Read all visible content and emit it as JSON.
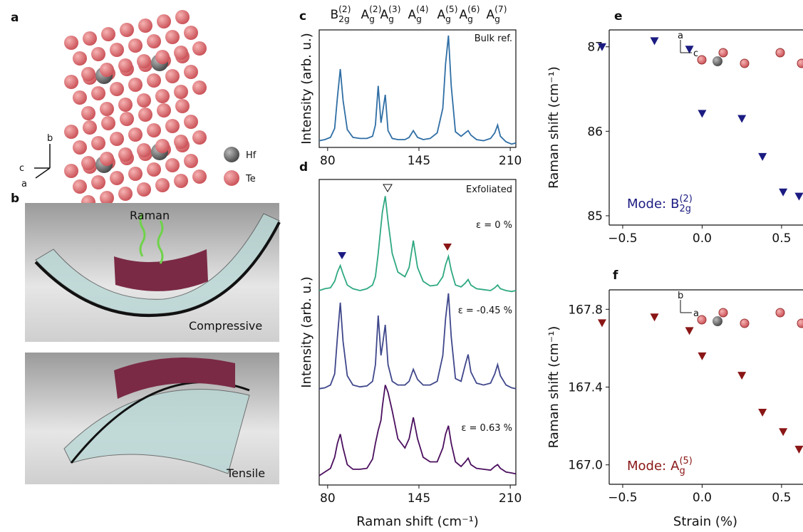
{
  "panel_a": {
    "label": "a",
    "crystal_axes": [
      "b",
      "c",
      "a"
    ],
    "legend": [
      "Hf",
      "Te"
    ]
  },
  "panel_b": {
    "label": "b",
    "labels": [
      "Raman",
      "Compressive",
      "Tensile"
    ]
  },
  "chart_data": [
    {
      "type": "line",
      "label": "c",
      "ylabel": "Intensity (arb. u.)",
      "peak_labels": [
        {
          "base": "B",
          "sub": "2g",
          "sup": "(2)"
        },
        {
          "base": "A",
          "sub": "g",
          "sup": "(2)"
        },
        {
          "base": "A",
          "sub": "g",
          "sup": "(3)"
        },
        {
          "base": "A",
          "sub": "g",
          "sup": "(4)"
        },
        {
          "base": "A",
          "sub": "g",
          "sup": "(5)"
        },
        {
          "base": "A",
          "sub": "g",
          "sup": "(6)"
        },
        {
          "base": "A",
          "sub": "g",
          "sup": "(7)"
        }
      ],
      "x": [
        74,
        78,
        82,
        85,
        87,
        89,
        91,
        94,
        98,
        103,
        108,
        112,
        114,
        116,
        118,
        119,
        121,
        123,
        126,
        130,
        135,
        138,
        141,
        144,
        148,
        153,
        158,
        162,
        164,
        166,
        168,
        171,
        175,
        178,
        180,
        182,
        186,
        191,
        196,
        199,
        201,
        203,
        207,
        211,
        214
      ],
      "series": [
        {
          "name": "Bulk ref.",
          "color": "#2f6ea5",
          "values": [
            0.06,
            0.07,
            0.09,
            0.17,
            0.45,
            0.7,
            0.42,
            0.16,
            0.09,
            0.08,
            0.08,
            0.1,
            0.2,
            0.55,
            0.22,
            0.3,
            0.47,
            0.15,
            0.08,
            0.07,
            0.07,
            0.09,
            0.15,
            0.09,
            0.07,
            0.08,
            0.13,
            0.35,
            0.75,
            1.0,
            0.55,
            0.14,
            0.1,
            0.13,
            0.15,
            0.11,
            0.07,
            0.06,
            0.08,
            0.13,
            0.2,
            0.1,
            0.05,
            0.03,
            0.04
          ]
        }
      ],
      "xlim": [
        74,
        214
      ],
      "ylim": [
        0,
        1.05
      ],
      "xticks": [
        80,
        145,
        210
      ]
    },
    {
      "type": "line",
      "label": "d",
      "ylabel": "Intensity (arb. u.)",
      "xlabel": "Raman shift (cm⁻¹)",
      "annotation": "Exfoliated",
      "x": [
        74,
        78,
        82,
        85,
        87,
        89,
        91,
        94,
        98,
        103,
        108,
        112,
        114,
        116,
        118,
        119,
        121,
        123,
        126,
        130,
        135,
        138,
        141,
        144,
        148,
        153,
        158,
        162,
        164,
        166,
        168,
        171,
        175,
        178,
        180,
        182,
        186,
        191,
        196,
        199,
        201,
        203,
        207,
        211,
        214
      ],
      "series": [
        {
          "name": "ε = 0 %",
          "color": "#2fa882",
          "values": [
            2.1,
            2.12,
            2.13,
            2.2,
            2.3,
            2.37,
            2.28,
            2.16,
            2.12,
            2.1,
            2.12,
            2.16,
            2.25,
            2.5,
            2.8,
            2.95,
            3.12,
            2.85,
            2.5,
            2.3,
            2.25,
            2.35,
            2.64,
            2.35,
            2.2,
            2.15,
            2.16,
            2.25,
            2.38,
            2.47,
            2.32,
            2.16,
            2.14,
            2.18,
            2.22,
            2.16,
            2.12,
            2.11,
            2.1,
            2.13,
            2.16,
            2.12,
            2.1,
            2.09,
            2.1
          ]
        },
        {
          "name": "ε = -0.45 %",
          "color": "#3f478b",
          "values": [
            1.04,
            1.05,
            1.08,
            1.2,
            1.6,
            1.97,
            1.55,
            1.18,
            1.08,
            1.06,
            1.07,
            1.12,
            1.3,
            1.83,
            1.4,
            1.5,
            1.73,
            1.3,
            1.12,
            1.08,
            1.08,
            1.12,
            1.25,
            1.14,
            1.08,
            1.08,
            1.12,
            1.4,
            1.8,
            2.07,
            1.6,
            1.15,
            1.12,
            1.3,
            1.41,
            1.22,
            1.1,
            1.08,
            1.1,
            1.2,
            1.3,
            1.18,
            1.08,
            1.05,
            1.04
          ]
        },
        {
          "name": "ε = 0.63 %",
          "color": "#4b0f5e",
          "values": [
            0.1,
            0.14,
            0.18,
            0.3,
            0.45,
            0.55,
            0.4,
            0.22,
            0.17,
            0.17,
            0.18,
            0.28,
            0.45,
            0.59,
            0.7,
            0.85,
            1.08,
            1.0,
            0.8,
            0.5,
            0.4,
            0.5,
            0.73,
            0.5,
            0.3,
            0.25,
            0.25,
            0.4,
            0.55,
            0.64,
            0.45,
            0.25,
            0.2,
            0.25,
            0.29,
            0.22,
            0.18,
            0.17,
            0.16,
            0.2,
            0.22,
            0.18,
            0.14,
            0.13,
            0.12
          ]
        }
      ],
      "xlim": [
        74,
        214
      ],
      "ylim": [
        0,
        3.3
      ],
      "xticks": [
        80,
        145,
        210
      ]
    },
    {
      "type": "scatter",
      "label": "e",
      "ylabel": "Raman shift (cm⁻¹)",
      "annotation": {
        "prefix": "Mode:",
        "base": "B",
        "sub": "2g",
        "sup": "(2)"
      },
      "inset_axes": [
        "a",
        "c"
      ],
      "x": [
        -0.63,
        -0.3,
        -0.08,
        0,
        0.25,
        0.38,
        0.51,
        0.61
      ],
      "values": [
        87.0,
        87.07,
        86.97,
        86.21,
        86.15,
        85.7,
        85.28,
        85.23
      ],
      "color": "#1b1b82",
      "xlim": [
        -0.585,
        0.635
      ],
      "ylim": [
        84.89,
        87.2
      ],
      "xticks": [
        {
          "value": -0.5,
          "label": "−0.5"
        },
        {
          "value": 0,
          "label": "0.0"
        },
        0.5
      ],
      "yticks": [
        85,
        86,
        87
      ]
    },
    {
      "type": "scatter",
      "label": "f",
      "ylabel": "Raman shift (cm⁻¹)",
      "xlabel": "Strain (%)",
      "annotation": {
        "prefix": "Mode:",
        "base": "A",
        "sub": "g",
        "sup": "(5)"
      },
      "inset_axes": [
        "b",
        "a"
      ],
      "x": [
        -0.63,
        -0.3,
        -0.08,
        0,
        0.25,
        0.38,
        0.51,
        0.61
      ],
      "values": [
        167.73,
        167.76,
        167.69,
        167.56,
        167.46,
        167.27,
        167.17,
        167.08
      ],
      "color": "#8a1616",
      "xlim": [
        -0.585,
        0.635
      ],
      "ylim": [
        166.9,
        167.9
      ],
      "xticks": [
        {
          "value": -0.5,
          "label": "−0.5"
        },
        {
          "value": 0,
          "label": "0.0"
        },
        0.5
      ],
      "yticks": [
        167.8,
        167.4,
        {
          "value": 167,
          "label": "167.0"
        }
      ]
    }
  ]
}
